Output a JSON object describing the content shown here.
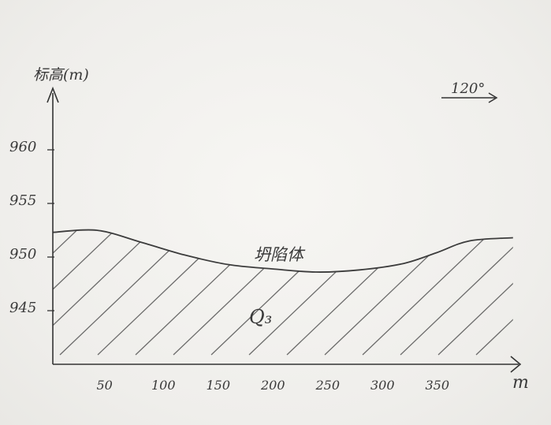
{
  "y_axis_label": "标高(m)",
  "x_axis_unit": "m",
  "orientation_label": "120°",
  "slope_label": "坍陷体",
  "stratum_label": "Q₃",
  "y_ticks": [
    {
      "label": "960",
      "value": 960
    },
    {
      "label": "955",
      "value": 955
    },
    {
      "label": "950",
      "value": 950
    },
    {
      "label": "945",
      "value": 945
    }
  ],
  "x_ticks": [
    {
      "label": "50",
      "value": 50
    },
    {
      "label": "100",
      "value": 100
    },
    {
      "label": "150",
      "value": 150
    },
    {
      "label": "200",
      "value": 200
    },
    {
      "label": "250",
      "value": 250
    },
    {
      "label": "300",
      "value": 300
    },
    {
      "label": "350",
      "value": 350
    }
  ],
  "ground_profile": [
    {
      "x": 0,
      "y": 952.3
    },
    {
      "x": 40,
      "y": 952.5
    },
    {
      "x": 80,
      "y": 951.4
    },
    {
      "x": 120,
      "y": 950.2
    },
    {
      "x": 160,
      "y": 949.3
    },
    {
      "x": 200,
      "y": 948.9
    },
    {
      "x": 240,
      "y": 948.6
    },
    {
      "x": 280,
      "y": 948.8
    },
    {
      "x": 320,
      "y": 949.4
    },
    {
      "x": 350,
      "y": 950.4
    },
    {
      "x": 380,
      "y": 951.5
    },
    {
      "x": 420,
      "y": 951.8
    }
  ]
}
